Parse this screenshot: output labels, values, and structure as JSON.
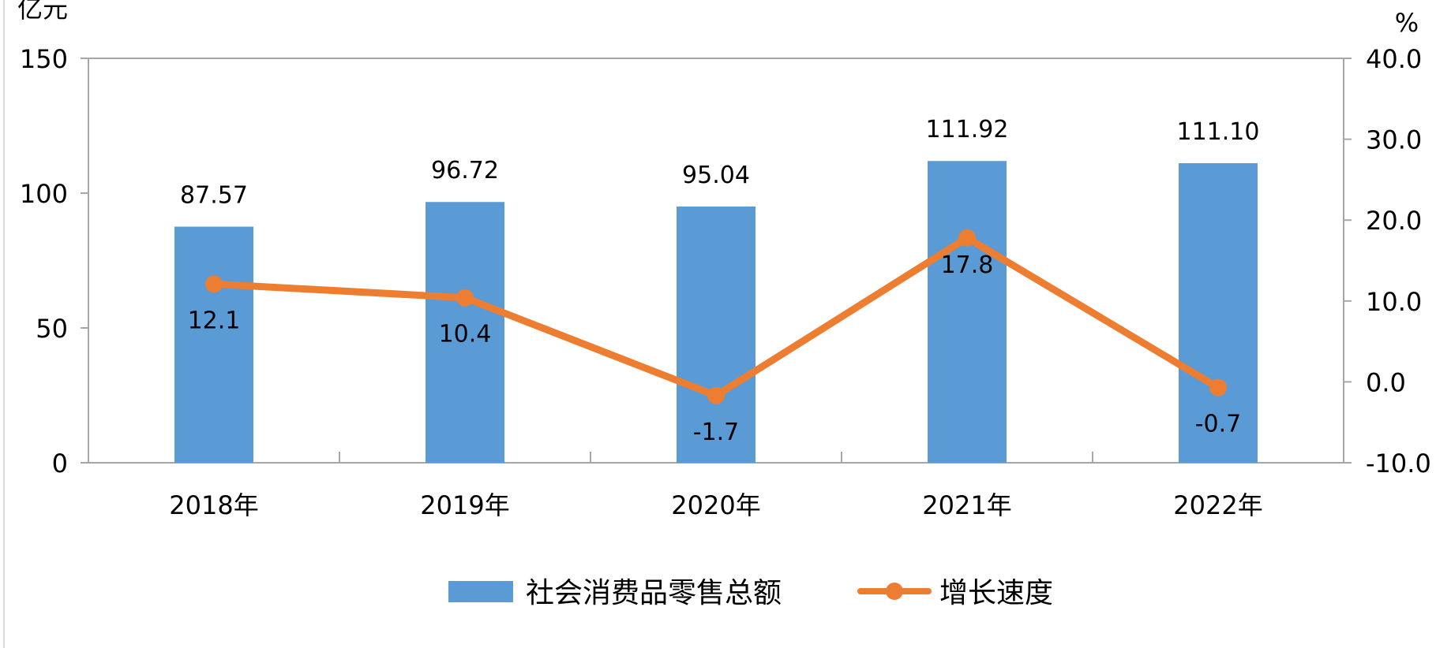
{
  "chart_data": {
    "type": "bar",
    "title": "",
    "categories": [
      "2018年",
      "2019年",
      "2020年",
      "2021年",
      "2022年"
    ],
    "left_axis": {
      "unit": "亿元",
      "ylim": [
        0,
        150
      ],
      "ticks": [
        "0",
        "50",
        "100",
        "150"
      ]
    },
    "right_axis": {
      "unit": "%",
      "ylim": [
        -10,
        40
      ],
      "ticks": [
        "-10.0",
        "0.0",
        "10.0",
        "20.0",
        "30.0",
        "40.0"
      ]
    },
    "series": [
      {
        "name": "社会消费品零售总额",
        "type": "bar",
        "axis": "left",
        "values": [
          87.57,
          96.72,
          95.04,
          111.92,
          111.1
        ],
        "labels": [
          "87.57",
          "96.72",
          "95.04",
          "111.92",
          "111.10"
        ]
      },
      {
        "name": "增长速度",
        "type": "line",
        "axis": "right",
        "values": [
          12.1,
          10.4,
          -1.7,
          17.8,
          -0.7
        ],
        "labels": [
          "12.1",
          "10.4",
          "-1.7",
          "17.8",
          "-0.7"
        ]
      }
    ],
    "legend": {
      "position": "bottom"
    },
    "grid": false,
    "colors": {
      "bar": "#5B9BD5",
      "line": "#ED7D31",
      "negative_label": "#FF0000",
      "axis": "#A6A6A6"
    }
  }
}
